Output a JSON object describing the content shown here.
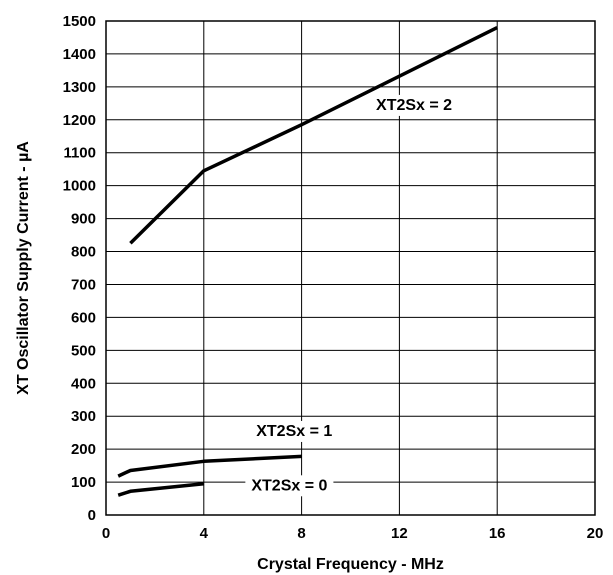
{
  "chart_data": {
    "type": "line",
    "title": "",
    "xlabel": "Crystal Frequency - MHz",
    "ylabel": "XT Oscillator Supply Current - µA",
    "xlim": [
      0,
      20
    ],
    "ylim": [
      0,
      1500
    ],
    "xticks": [
      0,
      4,
      8,
      12,
      16,
      20
    ],
    "yticks": [
      0,
      100,
      200,
      300,
      400,
      500,
      600,
      700,
      800,
      900,
      1000,
      1100,
      1200,
      1300,
      1400,
      1500
    ],
    "grid": true,
    "series": [
      {
        "name": "XT2Sx = 2",
        "x": [
          1,
          4,
          8,
          16
        ],
        "y": [
          825,
          1045,
          1185,
          1480
        ],
        "label_at": [
          12.6,
          1230
        ]
      },
      {
        "name": "XT2Sx = 1",
        "x": [
          0.5,
          1,
          4,
          8
        ],
        "y": [
          118,
          135,
          163,
          178
        ],
        "label_at": [
          7.7,
          240
        ]
      },
      {
        "name": "XT2Sx = 0",
        "x": [
          0.5,
          1,
          4
        ],
        "y": [
          60,
          72,
          95
        ],
        "label_at": [
          7.5,
          75
        ]
      }
    ]
  }
}
